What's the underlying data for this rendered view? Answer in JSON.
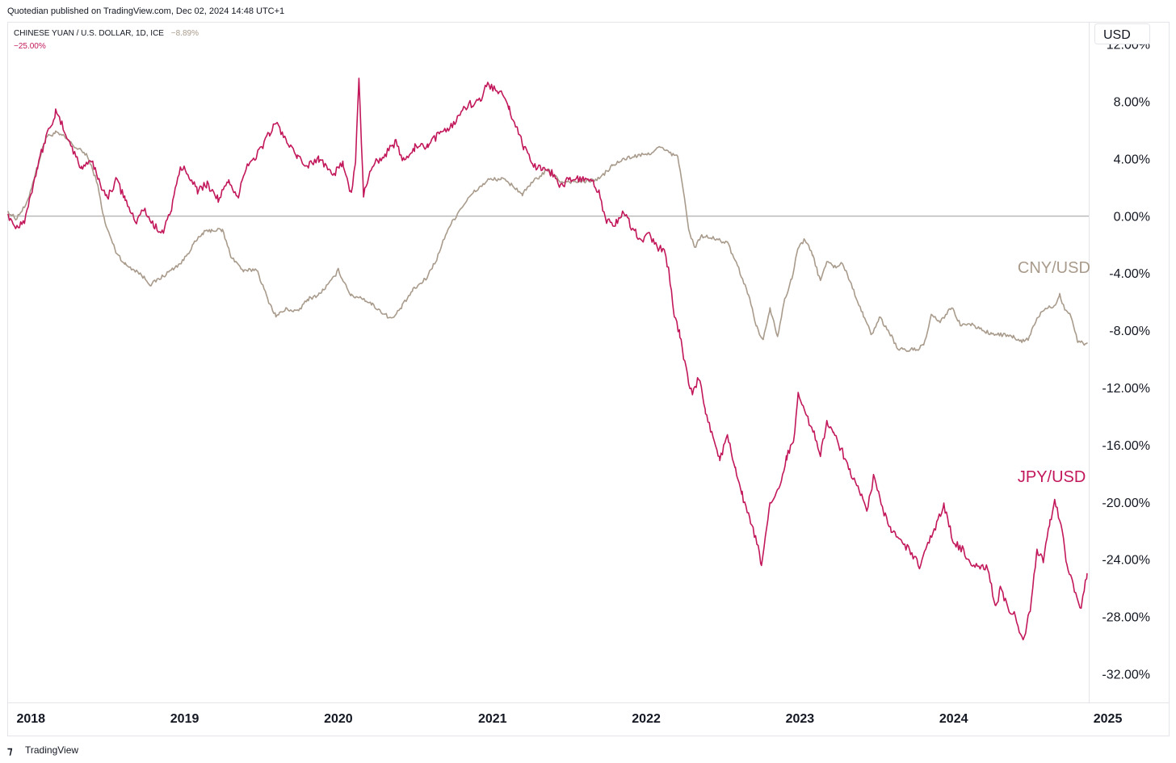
{
  "header": {
    "attribution": "Quotedian published on TradingView.com, Dec 02, 2024 14:48 UTC+1"
  },
  "footer": {
    "brand": "TradingView"
  },
  "chart_data": {
    "type": "line",
    "legend": {
      "symbol_title": "CHINESE YUAN / U.S. DOLLAR, 1D, ICE",
      "primary_value": "−8.89%",
      "secondary_value": "−25.00%"
    },
    "currency_label": "USD",
    "x_axis": {
      "min": "2017-11-27",
      "max": "2024-12-06",
      "ticks": [
        {
          "label": "2018",
          "date": "2018-01-01"
        },
        {
          "label": "2019",
          "date": "2019-01-01"
        },
        {
          "label": "2020",
          "date": "2020-01-01"
        },
        {
          "label": "2021",
          "date": "2021-01-01"
        },
        {
          "label": "2022",
          "date": "2022-01-01"
        },
        {
          "label": "2023",
          "date": "2023-01-01"
        },
        {
          "label": "2024",
          "date": "2024-01-01"
        },
        {
          "label": "2025",
          "date": "2025-01-01"
        }
      ]
    },
    "y_axis": {
      "unit": "%",
      "min": -34,
      "max": 13.5,
      "zero_line": 0,
      "ticks": [
        {
          "label": "12.00%",
          "value": 12
        },
        {
          "label": "8.00%",
          "value": 8
        },
        {
          "label": "4.00%",
          "value": 4
        },
        {
          "label": "0.00%",
          "value": 0
        },
        {
          "label": "-4.00%",
          "value": -4
        },
        {
          "label": "-8.00%",
          "value": -8
        },
        {
          "label": "-12.00%",
          "value": -12
        },
        {
          "label": "-16.00%",
          "value": -16
        },
        {
          "label": "-20.00%",
          "value": -20
        },
        {
          "label": "-24.00%",
          "value": -24
        },
        {
          "label": "-28.00%",
          "value": -28
        },
        {
          "label": "-32.00%",
          "value": -32
        }
      ]
    },
    "series": [
      {
        "name": "CNY/USD",
        "color": "#a99b8c",
        "points": [
          [
            "2017-11-27",
            0.3
          ],
          [
            "2017-12-15",
            -0.2
          ],
          [
            "2018-01-10",
            0.8
          ],
          [
            "2018-02-05",
            3.5
          ],
          [
            "2018-02-25",
            5.5
          ],
          [
            "2018-03-20",
            5.8
          ],
          [
            "2018-04-10",
            5.5
          ],
          [
            "2018-05-05",
            4.8
          ],
          [
            "2018-06-01",
            4.3
          ],
          [
            "2018-06-25",
            2.5
          ],
          [
            "2018-07-15",
            -0.5
          ],
          [
            "2018-08-10",
            -2.5
          ],
          [
            "2018-09-01",
            -3.4
          ],
          [
            "2018-10-01",
            -3.9
          ],
          [
            "2018-11-01",
            -4.8
          ],
          [
            "2018-12-01",
            -4.2
          ],
          [
            "2019-01-15",
            -3.2
          ],
          [
            "2019-02-10",
            -2.0
          ],
          [
            "2019-03-05",
            -1.2
          ],
          [
            "2019-03-25",
            -1.0
          ],
          [
            "2019-04-20",
            -1.0
          ],
          [
            "2019-05-10",
            -2.8
          ],
          [
            "2019-06-10",
            -3.9
          ],
          [
            "2019-07-10",
            -3.7
          ],
          [
            "2019-08-05",
            -5.8
          ],
          [
            "2019-08-25",
            -7.0
          ],
          [
            "2019-09-20",
            -6.5
          ],
          [
            "2019-10-15",
            -6.7
          ],
          [
            "2019-11-10",
            -5.8
          ],
          [
            "2019-12-05",
            -5.5
          ],
          [
            "2020-01-05",
            -4.5
          ],
          [
            "2020-01-20",
            -3.8
          ],
          [
            "2020-02-20",
            -5.6
          ],
          [
            "2020-03-15",
            -5.7
          ],
          [
            "2020-04-10",
            -6.2
          ],
          [
            "2020-05-10",
            -6.9
          ],
          [
            "2020-05-28",
            -7.2
          ],
          [
            "2020-06-20",
            -6.3
          ],
          [
            "2020-07-15",
            -5.2
          ],
          [
            "2020-08-15",
            -4.4
          ],
          [
            "2020-09-10",
            -3.0
          ],
          [
            "2020-10-05",
            -1.0
          ],
          [
            "2020-11-05",
            0.5
          ],
          [
            "2020-12-05",
            1.6
          ],
          [
            "2021-01-10",
            2.5
          ],
          [
            "2021-02-10",
            2.6
          ],
          [
            "2021-03-10",
            2.1
          ],
          [
            "2021-04-01",
            1.5
          ],
          [
            "2021-05-01",
            2.5
          ],
          [
            "2021-06-01",
            3.2
          ],
          [
            "2021-07-01",
            2.4
          ],
          [
            "2021-08-01",
            2.4
          ],
          [
            "2021-09-01",
            2.4
          ],
          [
            "2021-10-01",
            2.6
          ],
          [
            "2021-11-01",
            3.5
          ],
          [
            "2021-12-01",
            4.0
          ],
          [
            "2022-01-01",
            4.2
          ],
          [
            "2022-01-25",
            4.3
          ],
          [
            "2022-02-20",
            4.8
          ],
          [
            "2022-03-10",
            4.5
          ],
          [
            "2022-04-05",
            4.1
          ],
          [
            "2022-04-15",
            2.5
          ],
          [
            "2022-05-01",
            -1.0
          ],
          [
            "2022-05-15",
            -2.2
          ],
          [
            "2022-06-01",
            -1.4
          ],
          [
            "2022-07-01",
            -1.6
          ],
          [
            "2022-08-01",
            -1.9
          ],
          [
            "2022-08-25",
            -3.5
          ],
          [
            "2022-09-20",
            -5.5
          ],
          [
            "2022-10-10",
            -7.8
          ],
          [
            "2022-10-25",
            -8.7
          ],
          [
            "2022-11-10",
            -6.4
          ],
          [
            "2022-11-28",
            -8.4
          ],
          [
            "2022-12-15",
            -5.8
          ],
          [
            "2023-01-01",
            -4.4
          ],
          [
            "2023-01-15",
            -2.3
          ],
          [
            "2023-02-01",
            -1.6
          ],
          [
            "2023-02-20",
            -2.8
          ],
          [
            "2023-03-10",
            -4.6
          ],
          [
            "2023-03-25",
            -3.1
          ],
          [
            "2023-04-10",
            -3.6
          ],
          [
            "2023-05-01",
            -3.3
          ],
          [
            "2023-05-25",
            -5.0
          ],
          [
            "2023-06-20",
            -7.0
          ],
          [
            "2023-07-10",
            -8.3
          ],
          [
            "2023-07-28",
            -7.1
          ],
          [
            "2023-08-20",
            -8.1
          ],
          [
            "2023-09-10",
            -9.3
          ],
          [
            "2023-10-01",
            -9.4
          ],
          [
            "2023-10-25",
            -9.3
          ],
          [
            "2023-11-10",
            -9.1
          ],
          [
            "2023-11-28",
            -7.0
          ],
          [
            "2023-12-20",
            -7.4
          ],
          [
            "2024-01-15",
            -6.4
          ],
          [
            "2024-02-05",
            -7.6
          ],
          [
            "2024-03-01",
            -7.6
          ],
          [
            "2024-03-25",
            -7.9
          ],
          [
            "2024-04-20",
            -8.3
          ],
          [
            "2024-05-15",
            -8.3
          ],
          [
            "2024-06-10",
            -8.5
          ],
          [
            "2024-06-30",
            -8.8
          ],
          [
            "2024-07-15",
            -8.6
          ],
          [
            "2024-08-05",
            -7.2
          ],
          [
            "2024-08-25",
            -6.4
          ],
          [
            "2024-09-15",
            -6.3
          ],
          [
            "2024-09-28",
            -5.5
          ],
          [
            "2024-10-10",
            -6.5
          ],
          [
            "2024-10-25",
            -7.0
          ],
          [
            "2024-11-10",
            -8.8
          ],
          [
            "2024-11-22",
            -8.9
          ],
          [
            "2024-12-02",
            -8.89
          ]
        ]
      },
      {
        "name": "JPY/USD",
        "color": "#c2185b",
        "points": [
          [
            "2017-11-27",
            0.1
          ],
          [
            "2017-12-15",
            -0.8
          ],
          [
            "2018-01-05",
            -0.3
          ],
          [
            "2018-01-20",
            1.5
          ],
          [
            "2018-02-05",
            3.5
          ],
          [
            "2018-02-25",
            5.5
          ],
          [
            "2018-03-20",
            7.2
          ],
          [
            "2018-04-10",
            6.0
          ],
          [
            "2018-05-01",
            4.5
          ],
          [
            "2018-05-20",
            3.3
          ],
          [
            "2018-06-10",
            4.0
          ],
          [
            "2018-07-01",
            2.5
          ],
          [
            "2018-07-20",
            1.2
          ],
          [
            "2018-08-10",
            2.5
          ],
          [
            "2018-09-01",
            1.2
          ],
          [
            "2018-09-25",
            -0.5
          ],
          [
            "2018-10-15",
            0.5
          ],
          [
            "2018-11-10",
            -0.8
          ],
          [
            "2018-12-01",
            -1.0
          ],
          [
            "2018-12-20",
            0.5
          ],
          [
            "2019-01-10",
            3.3
          ],
          [
            "2019-01-25",
            3.2
          ],
          [
            "2019-02-20",
            1.8
          ],
          [
            "2019-03-15",
            2.2
          ],
          [
            "2019-04-10",
            1.2
          ],
          [
            "2019-05-05",
            2.3
          ],
          [
            "2019-05-25",
            1.2
          ],
          [
            "2019-06-15",
            3.5
          ],
          [
            "2019-07-10",
            4.2
          ],
          [
            "2019-08-10",
            5.8
          ],
          [
            "2019-08-25",
            6.5
          ],
          [
            "2019-09-20",
            5.2
          ],
          [
            "2019-10-15",
            4.0
          ],
          [
            "2019-11-10",
            3.5
          ],
          [
            "2019-12-05",
            4.0
          ],
          [
            "2020-01-10",
            3.0
          ],
          [
            "2020-02-01",
            3.6
          ],
          [
            "2020-02-20",
            1.5
          ],
          [
            "2020-03-01",
            3.8
          ],
          [
            "2020-03-09",
            9.5
          ],
          [
            "2020-03-20",
            1.5
          ],
          [
            "2020-04-10",
            3.6
          ],
          [
            "2020-05-10",
            4.3
          ],
          [
            "2020-06-05",
            5.1
          ],
          [
            "2020-06-25",
            3.7
          ],
          [
            "2020-07-20",
            4.8
          ],
          [
            "2020-08-20",
            4.8
          ],
          [
            "2020-09-20",
            5.9
          ],
          [
            "2020-10-20",
            6.4
          ],
          [
            "2020-11-10",
            7.5
          ],
          [
            "2020-12-05",
            7.9
          ],
          [
            "2020-12-25",
            8.0
          ],
          [
            "2021-01-06",
            9.3
          ],
          [
            "2021-01-25",
            8.9
          ],
          [
            "2021-02-10",
            8.5
          ],
          [
            "2021-03-01",
            7.5
          ],
          [
            "2021-03-20",
            6.0
          ],
          [
            "2021-04-05",
            4.8
          ],
          [
            "2021-04-25",
            3.5
          ],
          [
            "2021-05-20",
            3.4
          ],
          [
            "2021-06-10",
            3.0
          ],
          [
            "2021-07-01",
            2.0
          ],
          [
            "2021-07-20",
            2.6
          ],
          [
            "2021-08-20",
            2.5
          ],
          [
            "2021-09-10",
            2.5
          ],
          [
            "2021-09-30",
            1.7
          ],
          [
            "2021-10-15",
            -0.3
          ],
          [
            "2021-11-10",
            -0.5
          ],
          [
            "2021-11-28",
            0.3
          ],
          [
            "2021-12-20",
            -1.0
          ],
          [
            "2022-01-10",
            -1.7
          ],
          [
            "2022-01-25",
            -1.3
          ],
          [
            "2022-02-20",
            -2.3
          ],
          [
            "2022-03-05",
            -2.3
          ],
          [
            "2022-03-15",
            -4.0
          ],
          [
            "2022-03-28",
            -7.0
          ],
          [
            "2022-04-10",
            -8.3
          ],
          [
            "2022-04-25",
            -10.8
          ],
          [
            "2022-05-10",
            -12.6
          ],
          [
            "2022-05-25",
            -11.3
          ],
          [
            "2022-06-10",
            -13.6
          ],
          [
            "2022-06-28",
            -15.5
          ],
          [
            "2022-07-14",
            -17.0
          ],
          [
            "2022-08-01",
            -15.5
          ],
          [
            "2022-08-20",
            -17.6
          ],
          [
            "2022-09-05",
            -19.5
          ],
          [
            "2022-09-25",
            -21.5
          ],
          [
            "2022-10-10",
            -22.8
          ],
          [
            "2022-10-21",
            -24.5
          ],
          [
            "2022-11-10",
            -20.3
          ],
          [
            "2022-12-01",
            -19.0
          ],
          [
            "2022-12-20",
            -16.8
          ],
          [
            "2023-01-05",
            -15.8
          ],
          [
            "2023-01-16",
            -12.2
          ],
          [
            "2023-02-05",
            -14.0
          ],
          [
            "2023-02-20",
            -15.0
          ],
          [
            "2023-03-10",
            -16.8
          ],
          [
            "2023-03-25",
            -14.3
          ],
          [
            "2023-04-10",
            -15.2
          ],
          [
            "2023-05-01",
            -16.5
          ],
          [
            "2023-05-20",
            -18.0
          ],
          [
            "2023-06-10",
            -19.0
          ],
          [
            "2023-06-28",
            -20.8
          ],
          [
            "2023-07-14",
            -18.3
          ],
          [
            "2023-08-05",
            -20.5
          ],
          [
            "2023-08-25",
            -22.0
          ],
          [
            "2023-09-20",
            -22.8
          ],
          [
            "2023-10-10",
            -23.5
          ],
          [
            "2023-10-31",
            -24.5
          ],
          [
            "2023-11-20",
            -23.0
          ],
          [
            "2023-12-05",
            -22.0
          ],
          [
            "2023-12-28",
            -20.2
          ],
          [
            "2024-01-20",
            -22.8
          ],
          [
            "2024-02-10",
            -23.3
          ],
          [
            "2024-02-28",
            -24.2
          ],
          [
            "2024-03-20",
            -24.5
          ],
          [
            "2024-04-10",
            -24.5
          ],
          [
            "2024-04-29",
            -27.5
          ],
          [
            "2024-05-10",
            -26.0
          ],
          [
            "2024-05-25",
            -27.2
          ],
          [
            "2024-06-15",
            -28.0
          ],
          [
            "2024-07-03",
            -29.8
          ],
          [
            "2024-07-20",
            -27.5
          ],
          [
            "2024-08-05",
            -23.5
          ],
          [
            "2024-08-20",
            -24.0
          ],
          [
            "2024-09-05",
            -21.5
          ],
          [
            "2024-09-16",
            -20.0
          ],
          [
            "2024-10-01",
            -21.5
          ],
          [
            "2024-10-15",
            -24.5
          ],
          [
            "2024-10-30",
            -25.8
          ],
          [
            "2024-11-15",
            -27.6
          ],
          [
            "2024-11-22",
            -26.6
          ],
          [
            "2024-12-02",
            -25.0
          ]
        ]
      }
    ],
    "annotations": [
      {
        "text": "CNY/USD",
        "series": "CNY/USD",
        "date": "2024-06-20",
        "value": -4.0
      },
      {
        "text": "JPY/USD",
        "series": "JPY/USD",
        "date": "2024-06-20",
        "value": -18.6
      }
    ]
  }
}
